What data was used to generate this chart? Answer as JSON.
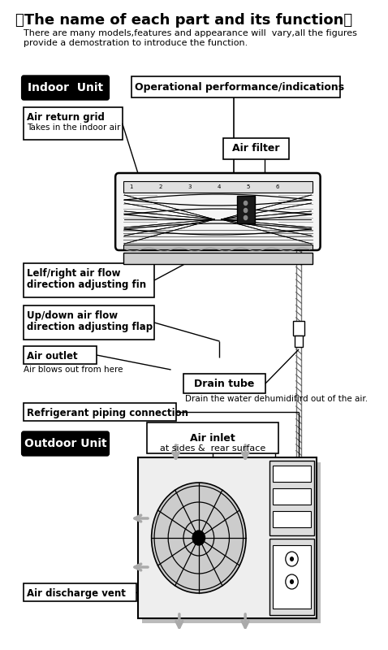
{
  "title": "《The name of each part and its function》",
  "subtitle": "There are many models,features and appearance will  vary,all the figures\nprovide a demostration to introduce the function.",
  "bg_color": "#ffffff",
  "indoor_unit": "Indoor  Unit",
  "operational": "Operational performance/indications",
  "air_return": "Air return grid",
  "air_return_sub": "Takes in the indoor air",
  "air_filter": "Air filter",
  "left_right_fin_1": "Lelf/right air flow",
  "left_right_fin_2": "direction adjusting fin",
  "updown_flap_1": "Up/down air flow",
  "updown_flap_2": "direction adjusting flap",
  "air_outlet": "Air outlet",
  "air_outlet_sub": "Air blows out from here",
  "drain_tube": "Drain tube",
  "drain_tube_sub": "Drain the water dehumidifird out of the air.",
  "refrigerant": "Refrigerant piping connection",
  "outdoor_unit": "Outdoor Unit",
  "air_inlet_1": "Air inlet",
  "air_inlet_2": "at sides &  rear surface",
  "air_discharge": "Air discharge vent"
}
